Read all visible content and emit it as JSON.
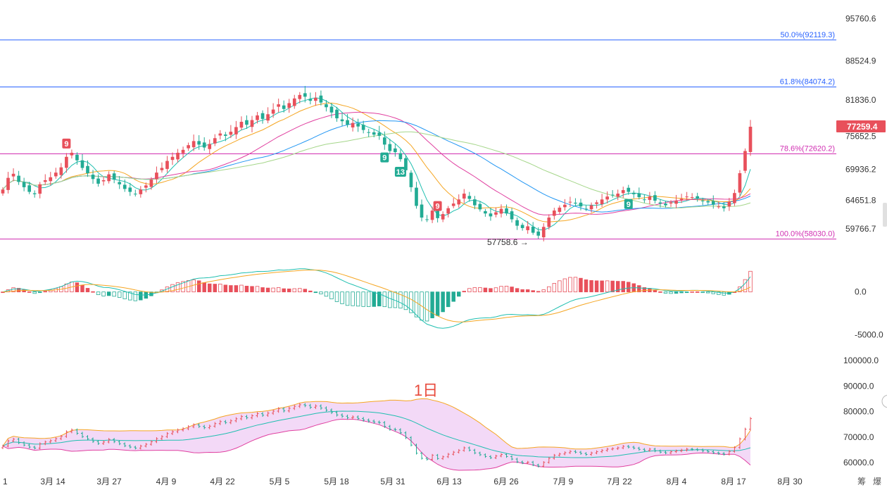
{
  "colors": {
    "up": "#e8505b",
    "down": "#22ab94",
    "fib_blue": "#2962ff",
    "fib_pink": "#d12fb2",
    "ma_short": "#1fbfb0",
    "ma_mid": "#f5a623",
    "ma_long": "#e040a0",
    "ma_long2": "#2196f3",
    "ma_long3": "#a5d68a",
    "boll_fill": "#f3d9f7"
  },
  "chart_data": [
    {
      "type": "candlestick",
      "name_label": "",
      "y_ticks": [
        "95760.6",
        "88524.9",
        "81836.0",
        "75652.5",
        "69936.2",
        "64651.8",
        "59766.7"
      ],
      "ylim": [
        57000,
        98000
      ],
      "last_price": "77259.4",
      "fib_levels": [
        {
          "label": "50.0%(92119.3)",
          "value": 92119.3,
          "color": "blue"
        },
        {
          "label": "61.8%(84074.2)",
          "value": 84074.2,
          "color": "blue"
        },
        {
          "label": "78.6%(72620.2)",
          "value": 72620.2,
          "color": "pink"
        },
        {
          "label": "100.0%(58030.0)",
          "value": 58030.0,
          "color": "pink"
        }
      ],
      "low_annotation": "57758.6 →",
      "td_markers": [
        {
          "label": "9",
          "index": 12,
          "side": "up"
        },
        {
          "label": "9",
          "index": 82,
          "side": "up"
        },
        {
          "label": "9",
          "index": 72,
          "side": "down"
        },
        {
          "label": "13",
          "index": 75,
          "side": "down"
        },
        {
          "label": "9",
          "index": 118,
          "side": "down"
        }
      ],
      "closes": [
        66500,
        68500,
        69200,
        67800,
        66900,
        66100,
        65700,
        67400,
        68100,
        68600,
        69400,
        70300,
        72100,
        72800,
        71500,
        70200,
        69300,
        68300,
        67500,
        68100,
        69100,
        68200,
        67400,
        66600,
        66100,
        65700,
        66500,
        67200,
        68200,
        69400,
        70200,
        71400,
        72100,
        72800,
        73300,
        74100,
        74800,
        74200,
        73700,
        74300,
        75300,
        76100,
        75700,
        76400,
        77200,
        78100,
        77600,
        78400,
        79200,
        78600,
        79400,
        80200,
        81100,
        80300,
        81300,
        82100,
        82700,
        82400,
        81700,
        82200,
        81400,
        80600,
        79700,
        78700,
        78200,
        77600,
        77900,
        77300,
        76700,
        76300,
        75900,
        75700,
        74200,
        73100,
        72900,
        71700,
        69800,
        66900,
        63700,
        61700,
        61300,
        62900,
        61600,
        62300,
        63300,
        64100,
        64800,
        65800,
        64900,
        63800,
        63100,
        62400,
        61900,
        62600,
        63200,
        62400,
        61400,
        60300,
        59900,
        60200,
        59100,
        58600,
        60100,
        61700,
        62900,
        63400,
        63900,
        64400,
        64100,
        63600,
        63200,
        63800,
        64300,
        64800,
        65300,
        65500,
        65800,
        66400,
        66100,
        65700,
        65200,
        64800,
        65300,
        64600,
        64100,
        63800,
        64300,
        64600,
        64900,
        65300,
        65200,
        65000,
        64600,
        64300,
        63900,
        63600,
        63300,
        64400,
        65900,
        69300,
        73100,
        77259.4
      ]
    },
    {
      "type": "macd",
      "y_ticks": [
        "0.0",
        "-5000.0"
      ],
      "ylim": [
        -7000,
        3500
      ]
    },
    {
      "type": "bollinger",
      "title": "1日",
      "y_ticks": [
        "100000.0",
        "90000.0",
        "80000.0",
        "70000.0",
        "60000.0"
      ],
      "ylim": [
        57000,
        102000
      ],
      "x_labels": [
        "1",
        "3月 14",
        "3月 27",
        "4月 9",
        "4月 22",
        "5月 5",
        "5月 18",
        "5月 31",
        "6月 13",
        "6月 26",
        "7月 9",
        "7月 22",
        "8月 4",
        "8月 17",
        "8月 30"
      ]
    }
  ],
  "corner_labels": [
    "筹",
    "爆"
  ]
}
